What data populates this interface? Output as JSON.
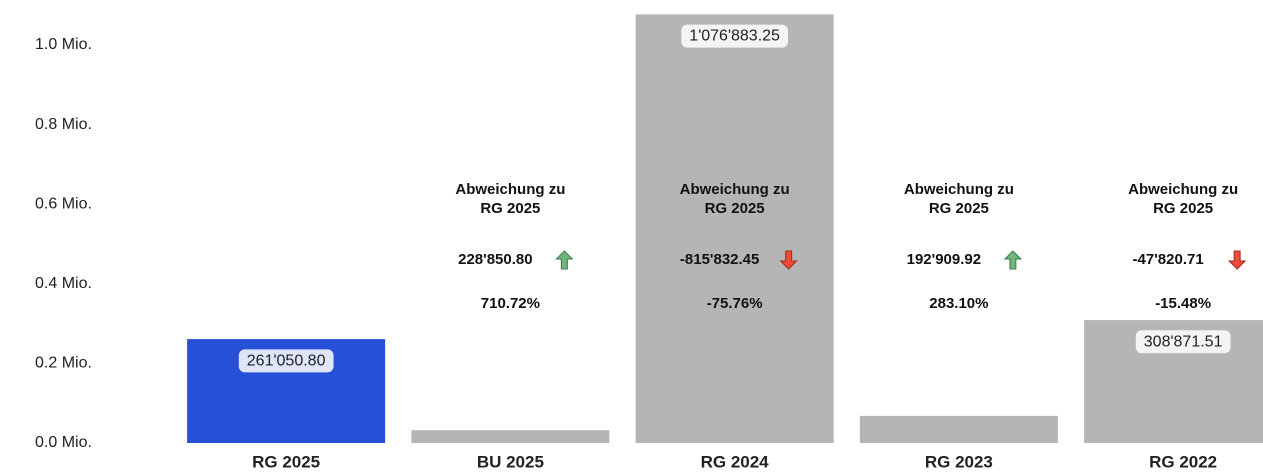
{
  "chart_data": {
    "type": "bar",
    "categories": [
      "RG 2025",
      "BU 2025",
      "RG 2024",
      "RG 2023",
      "RG 2022"
    ],
    "values": [
      261050.8,
      32200,
      1076883.25,
      68140.88,
      308871.51
    ],
    "value_labels": [
      "261'050.80",
      null,
      "1'076'883.25",
      null,
      "308'871.51"
    ],
    "colors": [
      "#2750d8",
      "#b5b5b5",
      "#b5b5b5",
      "#b5b5b5",
      "#b5b5b5"
    ],
    "ylim": [
      0,
      1113000
    ],
    "yticks": [
      {
        "value": 0,
        "label": "0.0 Mio."
      },
      {
        "value": 200000,
        "label": "0.2 Mio."
      },
      {
        "value": 400000,
        "label": "0.4 Mio."
      },
      {
        "value": 600000,
        "label": "0.6 Mio."
      },
      {
        "value": 800000,
        "label": "0.8 Mio."
      },
      {
        "value": 1000000,
        "label": "1.0 Mio."
      }
    ],
    "grid": false,
    "deviation_label": "Abweichung zu RG 2025",
    "deviations": [
      null,
      {
        "difference": {
          "value": 228850.8,
          "label": "228'850.80"
        },
        "percent": {
          "value": 710.72,
          "label": "710.72%"
        }
      },
      {
        "difference": {
          "value": -815832.45,
          "label": "-815'832.45"
        },
        "percent": {
          "value": -75.76,
          "label": "-75.76%"
        }
      },
      {
        "difference": {
          "value": 192909.92,
          "label": "192'909.92"
        },
        "percent": {
          "value": 283.1,
          "label": "283.10%"
        }
      },
      {
        "difference": {
          "value": -47820.71,
          "label": "-47'820.71"
        },
        "percent": {
          "value": -15.48,
          "label": "-15.48%"
        }
      }
    ]
  }
}
